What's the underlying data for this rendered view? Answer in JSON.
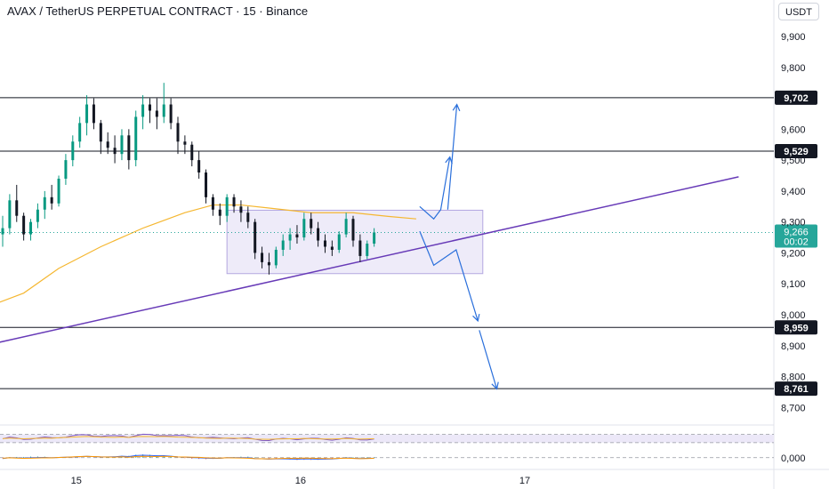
{
  "header": {
    "title": "AVAX / TetherUS PERPETUAL CONTRACT · 15 · Binance",
    "currency": "USDT"
  },
  "chart_data": {
    "type": "candlestick",
    "symbol": "AVAX / TetherUS PERPETUAL CONTRACT",
    "interval": "15",
    "exchange": "Binance",
    "quote": "USDT",
    "ylim": [
      8.64,
      9.98
    ],
    "y_ticks": [
      "9,900",
      "9,800",
      "9,600",
      "9,500",
      "9,400",
      "9,300",
      "9,200",
      "9,100",
      "9,000",
      "8,900",
      "8,800",
      "8,700"
    ],
    "y_tick_values": [
      9.9,
      9.8,
      9.6,
      9.5,
      9.4,
      9.3,
      9.2,
      9.1,
      9.0,
      8.9,
      8.8,
      8.7
    ],
    "x_ticks": [
      "15",
      "16",
      "17"
    ],
    "x_tick_values": [
      10.5,
      42.5,
      74.5
    ],
    "horizontal_levels": [
      {
        "label": "9,702",
        "value": 9.702
      },
      {
        "label": "9,529",
        "value": 9.529
      },
      {
        "label": "8,959",
        "value": 8.959
      },
      {
        "label": "8,761",
        "value": 8.761
      }
    ],
    "current_price": {
      "label": "9,266",
      "countdown": "00:02",
      "value": 9.266,
      "color": "#26a69a"
    },
    "trendline": {
      "points": [
        [
          -4,
          8.893
        ],
        [
          105,
          9.446
        ]
      ],
      "color": "#673ab7"
    },
    "box": {
      "x": [
        32,
        68.5
      ],
      "y": [
        9.133,
        9.338
      ],
      "fill": "#e7e3f7",
      "stroke": "#b3a7e0"
    },
    "moving_average": {
      "color": "#f5b731",
      "points": [
        [
          -4,
          9.01
        ],
        [
          3,
          9.07
        ],
        [
          8,
          9.15
        ],
        [
          14,
          9.22
        ],
        [
          20,
          9.28
        ],
        [
          26,
          9.33
        ],
        [
          30,
          9.355
        ],
        [
          34,
          9.355
        ],
        [
          38,
          9.345
        ],
        [
          44,
          9.33
        ],
        [
          50,
          9.33
        ],
        [
          55,
          9.318
        ],
        [
          59,
          9.31
        ]
      ]
    },
    "projection_up": {
      "color": "#2a6fdb",
      "points": [
        [
          59.5,
          9.35
        ],
        [
          61.5,
          9.31
        ],
        [
          62.5,
          9.34
        ],
        [
          63.8,
          9.51
        ]
      ],
      "second": [
        [
          63.5,
          9.34
        ],
        [
          64.8,
          9.68
        ]
      ]
    },
    "projection_down": {
      "color": "#2a6fdb",
      "points": [
        [
          59.5,
          9.27
        ],
        [
          61.5,
          9.16
        ],
        [
          64.7,
          9.21
        ],
        [
          67.8,
          8.98
        ]
      ],
      "second": [
        [
          68,
          8.95
        ],
        [
          70.5,
          8.76
        ]
      ]
    },
    "candles": [
      [
        9.26,
        9.32,
        9.22,
        9.28
      ],
      [
        9.28,
        9.39,
        9.26,
        9.37
      ],
      [
        9.37,
        9.42,
        9.3,
        9.32
      ],
      [
        9.32,
        9.33,
        9.24,
        9.26
      ],
      [
        9.26,
        9.31,
        9.24,
        9.3
      ],
      [
        9.3,
        9.36,
        9.28,
        9.34
      ],
      [
        9.34,
        9.4,
        9.31,
        9.38
      ],
      [
        9.38,
        9.42,
        9.34,
        9.36
      ],
      [
        9.36,
        9.45,
        9.35,
        9.44
      ],
      [
        9.44,
        9.52,
        9.42,
        9.5
      ],
      [
        9.5,
        9.58,
        9.48,
        9.56
      ],
      [
        9.56,
        9.64,
        9.54,
        9.62
      ],
      [
        9.62,
        9.71,
        9.58,
        9.68
      ],
      [
        9.68,
        9.7,
        9.6,
        9.62
      ],
      [
        9.62,
        9.63,
        9.52,
        9.56
      ],
      [
        9.56,
        9.59,
        9.52,
        9.54
      ],
      [
        9.54,
        9.58,
        9.49,
        9.52
      ],
      [
        9.52,
        9.6,
        9.5,
        9.58
      ],
      [
        9.58,
        9.6,
        9.47,
        9.5
      ],
      [
        9.5,
        9.66,
        9.48,
        9.64
      ],
      [
        9.64,
        9.71,
        9.6,
        9.68
      ],
      [
        9.68,
        9.7,
        9.62,
        9.66
      ],
      [
        9.66,
        9.7,
        9.6,
        9.64
      ],
      [
        9.64,
        9.75,
        9.62,
        9.68
      ],
      [
        9.68,
        9.7,
        9.6,
        9.62
      ],
      [
        9.62,
        9.64,
        9.52,
        9.56
      ],
      [
        9.56,
        9.58,
        9.52,
        9.55
      ],
      [
        9.55,
        9.56,
        9.48,
        9.5
      ],
      [
        9.5,
        9.53,
        9.44,
        9.46
      ],
      [
        9.46,
        9.47,
        9.36,
        9.38
      ],
      [
        9.38,
        9.39,
        9.32,
        9.34
      ],
      [
        9.34,
        9.36,
        9.29,
        9.32
      ],
      [
        9.32,
        9.39,
        9.3,
        9.38
      ],
      [
        9.38,
        9.39,
        9.33,
        9.35
      ],
      [
        9.35,
        9.37,
        9.3,
        9.33
      ],
      [
        9.33,
        9.35,
        9.28,
        9.3
      ],
      [
        9.3,
        9.31,
        9.18,
        9.2
      ],
      [
        9.2,
        9.22,
        9.15,
        9.17
      ],
      [
        9.17,
        9.2,
        9.13,
        9.16
      ],
      [
        9.16,
        9.22,
        9.15,
        9.21
      ],
      [
        9.21,
        9.26,
        9.19,
        9.24
      ],
      [
        9.24,
        9.28,
        9.21,
        9.26
      ],
      [
        9.26,
        9.29,
        9.23,
        9.25
      ],
      [
        9.25,
        9.33,
        9.24,
        9.31
      ],
      [
        9.31,
        9.33,
        9.26,
        9.28
      ],
      [
        9.28,
        9.3,
        9.22,
        9.24
      ],
      [
        9.24,
        9.26,
        9.2,
        9.22
      ],
      [
        9.22,
        9.24,
        9.19,
        9.21
      ],
      [
        9.21,
        9.27,
        9.2,
        9.26
      ],
      [
        9.26,
        9.33,
        9.25,
        9.31
      ],
      [
        9.31,
        9.32,
        9.22,
        9.24
      ],
      [
        9.24,
        9.26,
        9.17,
        9.19
      ],
      [
        9.19,
        9.24,
        9.18,
        9.23
      ],
      [
        9.23,
        9.28,
        9.22,
        9.266
      ]
    ],
    "indicator_panel": {
      "zero_label": "0,000",
      "band": [
        0.55,
        0.85
      ],
      "ylim": [
        -0.3,
        1.0
      ]
    }
  }
}
